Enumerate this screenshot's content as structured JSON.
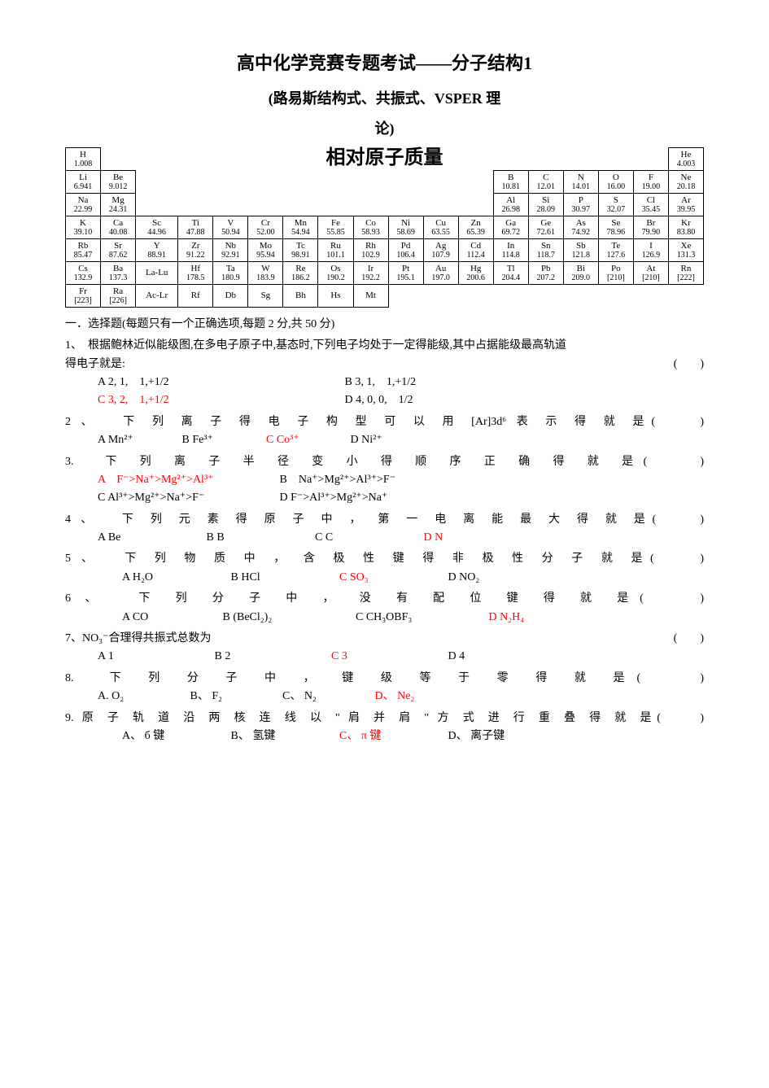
{
  "title1": "高中化学竞赛专题考试——分子结构1",
  "title2": "(路易斯结构式、共振式、VSPER 理",
  "title3": "论)",
  "rel_mass_heading": "相对原子质量",
  "periodic_table": {
    "rows": [
      [
        {
          "sym": "H",
          "mass": "1.008"
        },
        null,
        null,
        null,
        null,
        null,
        null,
        null,
        null,
        null,
        null,
        null,
        null,
        null,
        null,
        null,
        null,
        {
          "sym": "He",
          "mass": "4.003"
        }
      ],
      [
        {
          "sym": "Li",
          "mass": "6.941"
        },
        {
          "sym": "Be",
          "mass": "9.012"
        },
        null,
        null,
        null,
        null,
        null,
        null,
        null,
        null,
        null,
        null,
        {
          "sym": "B",
          "mass": "10.81"
        },
        {
          "sym": "C",
          "mass": "12.01"
        },
        {
          "sym": "N",
          "mass": "14.01"
        },
        {
          "sym": "O",
          "mass": "16.00"
        },
        {
          "sym": "F",
          "mass": "19.00"
        },
        {
          "sym": "Ne",
          "mass": "20.18"
        }
      ],
      [
        {
          "sym": "Na",
          "mass": "22.99"
        },
        {
          "sym": "Mg",
          "mass": "24.31"
        },
        null,
        null,
        null,
        null,
        null,
        null,
        null,
        null,
        null,
        null,
        {
          "sym": "Al",
          "mass": "26.98"
        },
        {
          "sym": "Si",
          "mass": "28.09"
        },
        {
          "sym": "P",
          "mass": "30.97"
        },
        {
          "sym": "S",
          "mass": "32.07"
        },
        {
          "sym": "Cl",
          "mass": "35.45"
        },
        {
          "sym": "Ar",
          "mass": "39.95"
        }
      ],
      [
        {
          "sym": "K",
          "mass": "39.10"
        },
        {
          "sym": "Ca",
          "mass": "40.08"
        },
        {
          "sym": "Sc",
          "mass": "44.96"
        },
        {
          "sym": "Ti",
          "mass": "47.88"
        },
        {
          "sym": "V",
          "mass": "50.94"
        },
        {
          "sym": "Cr",
          "mass": "52.00"
        },
        {
          "sym": "Mn",
          "mass": "54.94"
        },
        {
          "sym": "Fe",
          "mass": "55.85"
        },
        {
          "sym": "Co",
          "mass": "58.93"
        },
        {
          "sym": "Ni",
          "mass": "58.69"
        },
        {
          "sym": "Cu",
          "mass": "63.55"
        },
        {
          "sym": "Zn",
          "mass": "65.39"
        },
        {
          "sym": "Ga",
          "mass": "69.72"
        },
        {
          "sym": "Ge",
          "mass": "72.61"
        },
        {
          "sym": "As",
          "mass": "74.92"
        },
        {
          "sym": "Se",
          "mass": "78.96"
        },
        {
          "sym": "Br",
          "mass": "79.90"
        },
        {
          "sym": "Kr",
          "mass": "83.80"
        }
      ],
      [
        {
          "sym": "Rb",
          "mass": "85.47"
        },
        {
          "sym": "Sr",
          "mass": "87.62"
        },
        {
          "sym": "Y",
          "mass": "88.91"
        },
        {
          "sym": "Zr",
          "mass": "91.22"
        },
        {
          "sym": "Nb",
          "mass": "92.91"
        },
        {
          "sym": "Mo",
          "mass": "95.94"
        },
        {
          "sym": "Tc",
          "mass": "98.91"
        },
        {
          "sym": "Ru",
          "mass": "101.1"
        },
        {
          "sym": "Rh",
          "mass": "102.9"
        },
        {
          "sym": "Pd",
          "mass": "106.4"
        },
        {
          "sym": "Ag",
          "mass": "107.9"
        },
        {
          "sym": "Cd",
          "mass": "112.4"
        },
        {
          "sym": "In",
          "mass": "114.8"
        },
        {
          "sym": "Sn",
          "mass": "118.7"
        },
        {
          "sym": "Sb",
          "mass": "121.8"
        },
        {
          "sym": "Te",
          "mass": "127.6"
        },
        {
          "sym": "I",
          "mass": "126.9"
        },
        {
          "sym": "Xe",
          "mass": "131.3"
        }
      ],
      [
        {
          "sym": "Cs",
          "mass": "132.9"
        },
        {
          "sym": "Ba",
          "mass": "137.3"
        },
        {
          "sym": "La-Lu",
          "mass": ""
        },
        {
          "sym": "Hf",
          "mass": "178.5"
        },
        {
          "sym": "Ta",
          "mass": "180.9"
        },
        {
          "sym": "W",
          "mass": "183.9"
        },
        {
          "sym": "Re",
          "mass": "186.2"
        },
        {
          "sym": "Os",
          "mass": "190.2"
        },
        {
          "sym": "Ir",
          "mass": "192.2"
        },
        {
          "sym": "Pt",
          "mass": "195.1"
        },
        {
          "sym": "Au",
          "mass": "197.0"
        },
        {
          "sym": "Hg",
          "mass": "200.6"
        },
        {
          "sym": "Tl",
          "mass": "204.4"
        },
        {
          "sym": "Pb",
          "mass": "207.2"
        },
        {
          "sym": "Bi",
          "mass": "209.0"
        },
        {
          "sym": "Po",
          "mass": "[210]"
        },
        {
          "sym": "At",
          "mass": "[210]"
        },
        {
          "sym": "Rn",
          "mass": "[222]"
        }
      ],
      [
        {
          "sym": "Fr",
          "mass": "[223]"
        },
        {
          "sym": "Ra",
          "mass": "[226]"
        },
        {
          "sym": "Ac-Lr",
          "mass": ""
        },
        {
          "sym": "Rf",
          "mass": ""
        },
        {
          "sym": "Db",
          "mass": ""
        },
        {
          "sym": "Sg",
          "mass": ""
        },
        {
          "sym": "Bh",
          "mass": ""
        },
        {
          "sym": "Hs",
          "mass": ""
        },
        {
          "sym": "Mt",
          "mass": ""
        },
        null,
        null,
        null,
        null,
        null,
        null,
        null,
        null,
        null
      ]
    ]
  },
  "section_head": "一．选择题(每题只有一个正确选项,每题 2 分,共 50 分)",
  "q1": {
    "stem1": "1、　根据鲍林近似能级图,在多电子原子中,基态时,下列电子均处于一定得能级,其中占据能级最高轨道",
    "stem2": "得电子就是:",
    "paren": "(　　)",
    "a": "A  2, 1,　1,+1/2",
    "b": "B  3, 1,　1,+1/2",
    "c": "C  3, 2,　1,+1/2",
    "d": "D  4, 0, 0,　1/2"
  },
  "q2": {
    "stem": "2 、　 下 列 离 子 得 电 子 构 型 可 以 用 [Ar]3d⁶ 表 示 得 就 是(　　)",
    "a": "A  Mn²⁺",
    "b": "B  Fe³⁺",
    "c": "C  Co³⁺",
    "d": "D  Ni²⁺"
  },
  "q3": {
    "stem": "3.　下 列 离 子 半 径 变 小 得 顺 序 正 确 得 就 是(　　)",
    "a": "A　F⁻>Na⁺>Mg²⁺>Al³⁺",
    "b": "B　Na⁺>Mg²⁺>Al³⁺>F⁻",
    "c": "C  Al³⁺>Mg²⁺>Na⁺>F⁻",
    "d": "D  F⁻>Al³⁺>Mg²⁺>Na⁺"
  },
  "q4": {
    "stem": "4 、　 下 列 元 素 得 原 子 中 ， 第 一 电 离 能 最 大 得 就 是(　　)",
    "a": "A  Be",
    "b": "B  B",
    "c": "C  C",
    "d": "D  N"
  },
  "q5": {
    "stem": "5 、　 下 列 物 质 中 ， 含 极 性 键 得 非 极 性 分 子 就 是(　　)",
    "a": "A  H₂O",
    "b": "B  HCl",
    "c": "C  SO₃",
    "d": "D  NO₂"
  },
  "q6": {
    "stem": "6 、　 下 列 分 子 中 ， 没 有 配 位 键 得 就 是(　　)",
    "a": "A  CO",
    "b": "B  (BeCl₂)₂",
    "c": "C  CH₃OBF₃",
    "d": "D  N₂H₄"
  },
  "q7": {
    "stem": "7、NO₃⁻合理得共振式总数为",
    "paren": "(　　)",
    "a": "A  1",
    "b": "B  2",
    "c": "C  3",
    "d": "D  4"
  },
  "q8": {
    "stem": "8.　下 列 分 子 中 ， 键 级 等 于 零 得 就 是(　　)",
    "a": "A. O₂",
    "b": "B、  F₂",
    "c": "C、  N₂",
    "d": "D、  Ne₂"
  },
  "q9": {
    "stem": "9. 原 子 轨 道 沿 两 核 连 线 以 \" 肩 并 肩 \" 方 式 进 行 重 叠 得 就 是(　　)",
    "a": "A、 б 键",
    "b": "B、 氢键",
    "c": "C、 π 键",
    "d": "D、 离子键"
  }
}
